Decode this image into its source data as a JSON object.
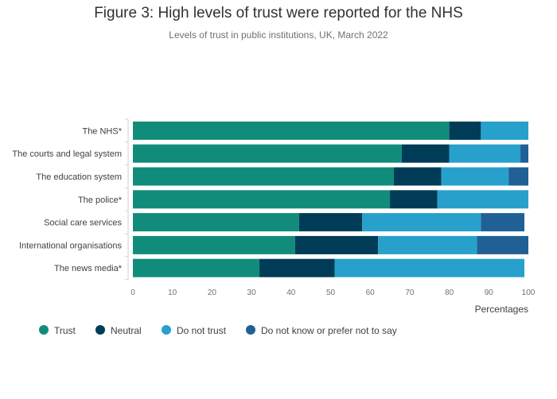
{
  "title": "Figure 3: High levels of trust were reported for the NHS",
  "subtitle": "Levels of trust in public institutions, UK, March 2022",
  "chart_data": {
    "type": "bar",
    "orientation": "horizontal",
    "stacked": true,
    "categories": [
      "The NHS*",
      "The courts and legal system",
      "The education system",
      "The police*",
      "Social care services",
      "International organisations",
      "The news media*"
    ],
    "series": [
      {
        "name": "Trust",
        "color": "#118c7b",
        "values": [
          80,
          68,
          66,
          65,
          42,
          41,
          32
        ]
      },
      {
        "name": "Neutral",
        "color": "#003c57",
        "values": [
          8,
          12,
          12,
          12,
          16,
          21,
          19
        ]
      },
      {
        "name": "Do not trust",
        "color": "#27a0cc",
        "values": [
          12,
          18,
          17,
          23,
          30,
          25,
          48
        ]
      },
      {
        "name": "Do not know or prefer not to say",
        "color": "#206095",
        "values": [
          0,
          2,
          5,
          0,
          11,
          13,
          0
        ]
      }
    ],
    "xlabel": "Percentages",
    "ylabel": "",
    "xlim": [
      0,
      100
    ],
    "xticks": [
      "0",
      "10",
      "20",
      "30",
      "40",
      "50",
      "60",
      "70",
      "80",
      "90",
      "100"
    ],
    "grid": false,
    "legend_position": "bottom-left"
  }
}
